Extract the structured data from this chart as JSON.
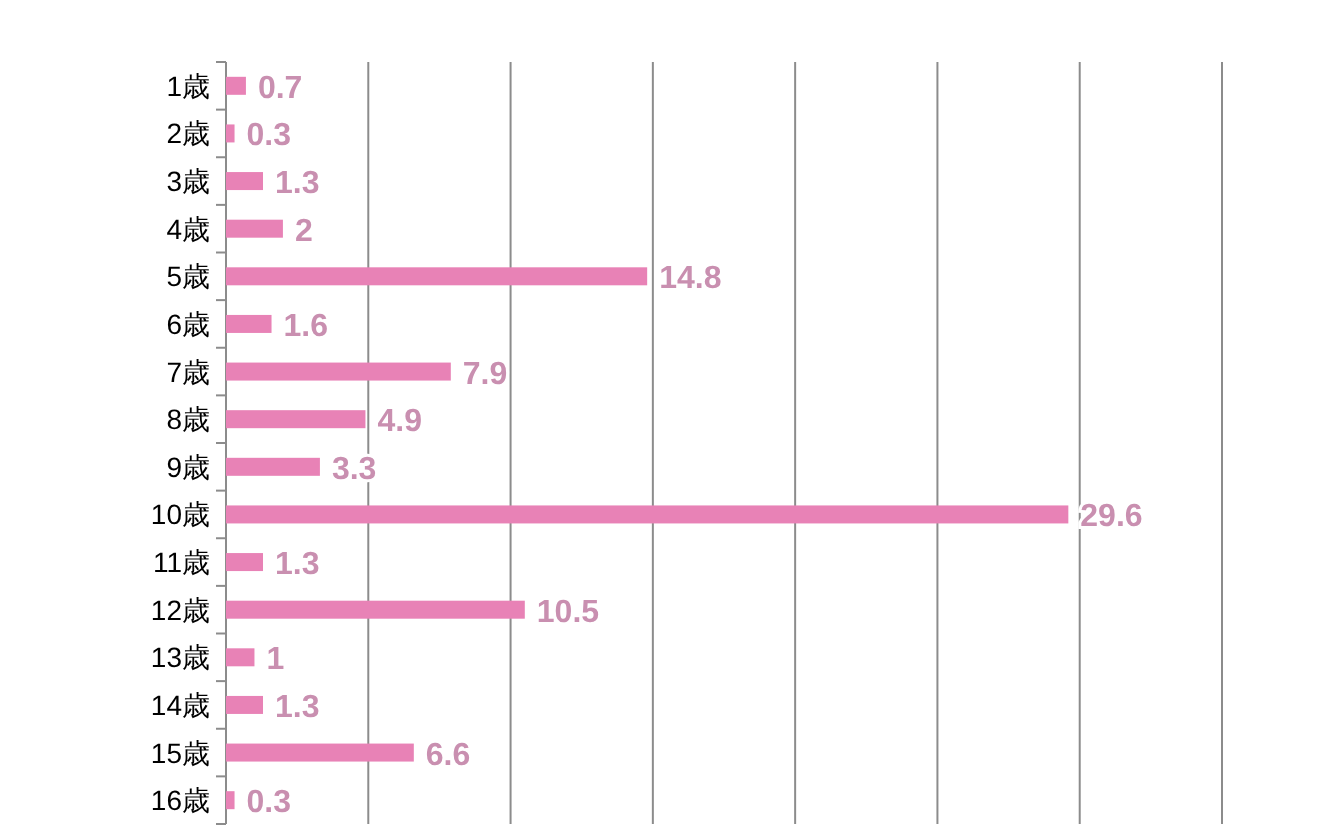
{
  "chart_data": {
    "type": "bar",
    "orientation": "horizontal",
    "categories": [
      "1歳",
      "2歳",
      "3歳",
      "4歳",
      "5歳",
      "6歳",
      "7歳",
      "8歳",
      "9歳",
      "10歳",
      "11歳",
      "12歳",
      "13歳",
      "14歳",
      "15歳",
      "16歳"
    ],
    "values": [
      0.7,
      0.3,
      1.3,
      2,
      14.8,
      1.6,
      7.9,
      4.9,
      3.3,
      29.6,
      1.3,
      10.5,
      1,
      1.3,
      6.6,
      0.3
    ],
    "color": "#e882b6",
    "xticks": [
      {
        "value": 0,
        "label": null
      },
      {
        "value": 5,
        "label": null
      },
      {
        "value": 10,
        "label": null
      },
      {
        "value": 15,
        "label": null
      },
      {
        "value": 20,
        "label": null
      },
      {
        "value": 25,
        "label": null
      },
      {
        "value": 30,
        "label": null
      },
      {
        "value": 35,
        "label": null
      }
    ],
    "grid": "x",
    "data_labels": true,
    "tick_labels": "y"
  }
}
